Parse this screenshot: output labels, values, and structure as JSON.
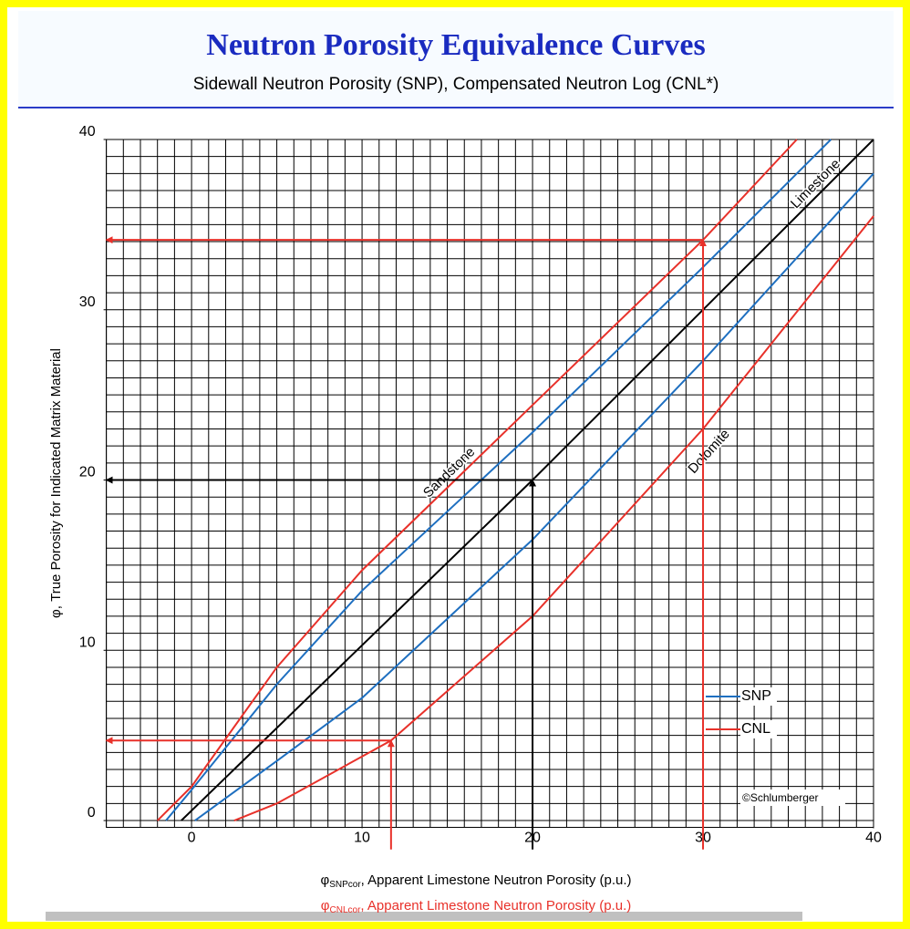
{
  "chart_data": {
    "type": "line",
    "title": "Neutron Porosity Equivalence Curves",
    "subtitle": "Sidewall Neutron Porosity (SNP), Compensated Neutron Log (CNL*)",
    "x_labels": [
      {
        "symbol": "φ",
        "sub": "SNPcor",
        "text": ", Apparent Limestone Neutron Porosity (p.u.)",
        "color": "#000000"
      },
      {
        "symbol": "φ",
        "sub": "CNLcor",
        "text": ", Apparent Limestone Neutron Porosity (p.u.)",
        "color": "#e8312a"
      }
    ],
    "y_label": "φ, True Porosity for Indicated Matrix Material",
    "xlim": [
      -5,
      40
    ],
    "ylim": [
      -0.4,
      40
    ],
    "xticks": [
      0,
      10,
      20,
      30,
      40
    ],
    "yticks": [
      0,
      10,
      20,
      30,
      40
    ],
    "grid": true,
    "grid_step": 1,
    "series": [
      {
        "name": "Sandstone",
        "color": "#e8312a",
        "x": [
          -2,
          0,
          5,
          10,
          20,
          30,
          35.5
        ],
        "y": [
          0,
          2,
          9,
          14.7,
          24.4,
          34.1,
          40
        ]
      },
      {
        "color": "#1e6fc0",
        "x": [
          -1.5,
          0,
          5,
          10,
          20,
          30,
          37.5
        ],
        "y": [
          0,
          1.8,
          8,
          13.5,
          22.8,
          32.5,
          40
        ]
      },
      {
        "name": "Limestone",
        "color": "#000000",
        "x": [
          -0.6,
          20,
          40
        ],
        "y": [
          0,
          20,
          40
        ]
      },
      {
        "color": "#1e6fc0",
        "x": [
          0.2,
          5,
          10,
          20,
          30,
          40
        ],
        "y": [
          0,
          3.5,
          7.2,
          16.5,
          27,
          38
        ]
      },
      {
        "name": "Dolomite",
        "color": "#e8312a",
        "x": [
          2.5,
          5,
          11.7,
          20,
          30,
          40
        ],
        "y": [
          0,
          1,
          4.7,
          12,
          23,
          35.5
        ]
      }
    ],
    "arrows": [
      {
        "color": "#e8312a",
        "x": [
          30,
          30,
          -5
        ],
        "y": [
          -1.7,
          34.1,
          34.1
        ]
      },
      {
        "color": "#000000",
        "x": [
          20,
          20,
          -5
        ],
        "y": [
          -1.7,
          20,
          20
        ]
      },
      {
        "color": "#e8312a",
        "x": [
          11.7,
          11.7,
          -5
        ],
        "y": [
          -1.7,
          4.7,
          4.7
        ]
      }
    ],
    "legend": {
      "position": "lower right",
      "entries": [
        {
          "label": "SNP",
          "color": "#1e6fc0"
        },
        {
          "label": "CNL",
          "color": "#e8312a"
        }
      ]
    },
    "credit": "©Schlumberger"
  }
}
